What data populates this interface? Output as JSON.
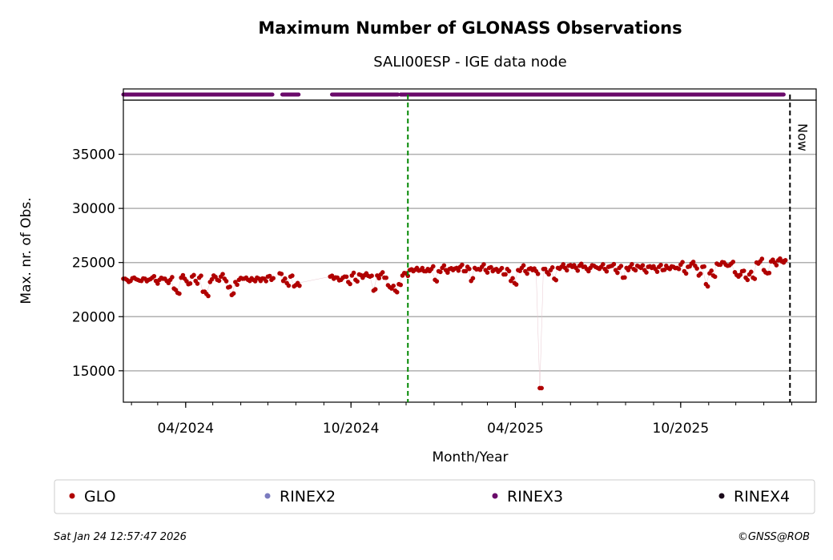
{
  "chart_data": {
    "type": "scatter",
    "title": "Maximum Number of GLONASS Observations",
    "subtitle": "SALI00ESP - IGE data node",
    "xlabel": "Month/Year",
    "ylabel": "Max. nr. of Obs.",
    "x_unit": "days since 2024-01-23",
    "start_date": "2024-01-23",
    "xlim": [
      0,
      767
    ],
    "ylim": [
      12100,
      40000
    ],
    "yticks": [
      15000,
      20000,
      25000,
      30000,
      35000
    ],
    "ytick_labels": [
      "15000",
      "20000",
      "25000",
      "30000",
      "35000"
    ],
    "xtick_labels": [
      {
        "label": "04/2024",
        "date": "2024-04-01"
      },
      {
        "label": "10/2024",
        "date": "2024-10-01"
      },
      {
        "label": "04/2025",
        "date": "2025-04-01"
      },
      {
        "label": "10/2025",
        "date": "2025-10-01"
      }
    ],
    "grid": "horizontal",
    "vline_green_day": 315,
    "now_day": 738,
    "now_label": "Now",
    "series": [
      {
        "name": "GLO",
        "color": "#b00000",
        "points": [
          [
            0,
            23500
          ],
          [
            4,
            23400
          ],
          [
            8,
            23300
          ],
          [
            12,
            23600
          ],
          [
            16,
            23400
          ],
          [
            20,
            23300
          ],
          [
            24,
            23500
          ],
          [
            28,
            23400
          ],
          [
            32,
            23600
          ],
          [
            36,
            23300
          ],
          [
            40,
            23400
          ],
          [
            44,
            23500
          ],
          [
            48,
            23300
          ],
          [
            52,
            23400
          ],
          [
            56,
            22600
          ],
          [
            60,
            22200
          ],
          [
            64,
            23600
          ],
          [
            68,
            23500
          ],
          [
            72,
            23000
          ],
          [
            76,
            23700
          ],
          [
            80,
            23300
          ],
          [
            84,
            23600
          ],
          [
            88,
            22300
          ],
          [
            92,
            22100
          ],
          [
            96,
            23200
          ],
          [
            100,
            23800
          ],
          [
            104,
            23400
          ],
          [
            108,
            23700
          ],
          [
            112,
            23500
          ],
          [
            116,
            22700
          ],
          [
            120,
            22000
          ],
          [
            124,
            23200
          ],
          [
            128,
            23400
          ],
          [
            132,
            23500
          ],
          [
            136,
            23600
          ],
          [
            140,
            23300
          ],
          [
            144,
            23400
          ],
          [
            148,
            23600
          ],
          [
            152,
            23300
          ],
          [
            156,
            23500
          ],
          [
            160,
            23700
          ],
          [
            164,
            23400
          ],
          [
            173,
            24000
          ],
          [
            177,
            23300
          ],
          [
            181,
            23100
          ],
          [
            185,
            23700
          ],
          [
            189,
            22800
          ],
          [
            193,
            23100
          ],
          [
            229,
            23700
          ],
          [
            233,
            23500
          ],
          [
            237,
            23600
          ],
          [
            241,
            23400
          ],
          [
            245,
            23700
          ],
          [
            249,
            23200
          ],
          [
            253,
            23800
          ],
          [
            257,
            23400
          ],
          [
            261,
            23900
          ],
          [
            265,
            23600
          ],
          [
            269,
            24000
          ],
          [
            273,
            23700
          ],
          [
            277,
            22400
          ],
          [
            281,
            23800
          ],
          [
            285,
            23900
          ],
          [
            289,
            23600
          ],
          [
            293,
            22900
          ],
          [
            297,
            22600
          ],
          [
            301,
            22400
          ],
          [
            305,
            23000
          ],
          [
            309,
            23800
          ],
          [
            313,
            24000
          ],
          [
            317,
            24300
          ],
          [
            321,
            24200
          ],
          [
            325,
            24500
          ],
          [
            329,
            24300
          ],
          [
            333,
            24200
          ],
          [
            337,
            24400
          ],
          [
            341,
            24400
          ],
          [
            345,
            23400
          ],
          [
            349,
            24200
          ],
          [
            353,
            24500
          ],
          [
            357,
            24300
          ],
          [
            361,
            24400
          ],
          [
            365,
            24300
          ],
          [
            369,
            24500
          ],
          [
            373,
            24600
          ],
          [
            377,
            24200
          ],
          [
            381,
            24600
          ],
          [
            385,
            23300
          ],
          [
            389,
            24500
          ],
          [
            393,
            24400
          ],
          [
            397,
            24600
          ],
          [
            401,
            24300
          ],
          [
            405,
            24500
          ],
          [
            409,
            24200
          ],
          [
            413,
            24400
          ],
          [
            417,
            24300
          ],
          [
            421,
            23900
          ],
          [
            425,
            24400
          ],
          [
            429,
            23300
          ],
          [
            433,
            23100
          ],
          [
            437,
            24300
          ],
          [
            441,
            24500
          ],
          [
            445,
            24200
          ],
          [
            449,
            24400
          ],
          [
            453,
            24300
          ],
          [
            457,
            24200
          ],
          [
            461,
            13400
          ],
          [
            465,
            24400
          ],
          [
            469,
            24100
          ],
          [
            473,
            24300
          ],
          [
            477,
            23500
          ],
          [
            481,
            24500
          ],
          [
            485,
            24600
          ],
          [
            489,
            24500
          ],
          [
            493,
            24700
          ],
          [
            497,
            24600
          ],
          [
            501,
            24500
          ],
          [
            505,
            24700
          ],
          [
            509,
            24600
          ],
          [
            513,
            24400
          ],
          [
            517,
            24500
          ],
          [
            521,
            24700
          ],
          [
            525,
            24500
          ],
          [
            529,
            24600
          ],
          [
            533,
            24400
          ],
          [
            537,
            24600
          ],
          [
            541,
            24700
          ],
          [
            545,
            24300
          ],
          [
            549,
            24500
          ],
          [
            553,
            23600
          ],
          [
            557,
            24500
          ],
          [
            561,
            24600
          ],
          [
            565,
            24400
          ],
          [
            569,
            24700
          ],
          [
            573,
            24500
          ],
          [
            577,
            24300
          ],
          [
            581,
            24600
          ],
          [
            585,
            24500
          ],
          [
            589,
            24400
          ],
          [
            593,
            24600
          ],
          [
            597,
            24300
          ],
          [
            601,
            24700
          ],
          [
            605,
            24400
          ],
          [
            609,
            24600
          ],
          [
            613,
            24500
          ],
          [
            617,
            24800
          ],
          [
            621,
            24200
          ],
          [
            625,
            24600
          ],
          [
            629,
            24900
          ],
          [
            633,
            24700
          ],
          [
            637,
            23800
          ],
          [
            641,
            24600
          ],
          [
            645,
            23000
          ],
          [
            649,
            24000
          ],
          [
            653,
            23800
          ],
          [
            657,
            24900
          ],
          [
            661,
            24800
          ],
          [
            665,
            25000
          ],
          [
            669,
            24700
          ],
          [
            673,
            24900
          ],
          [
            677,
            24100
          ],
          [
            681,
            23700
          ],
          [
            685,
            24200
          ],
          [
            689,
            23600
          ],
          [
            693,
            23900
          ],
          [
            697,
            23600
          ],
          [
            701,
            25000
          ],
          [
            705,
            25100
          ],
          [
            709,
            24300
          ],
          [
            713,
            24000
          ],
          [
            717,
            25100
          ],
          [
            721,
            25000
          ],
          [
            725,
            25200
          ],
          [
            729,
            25100
          ],
          [
            731,
            25000
          ]
        ]
      },
      {
        "name": "RINEX2",
        "color": "#7b7bbf",
        "segments": []
      },
      {
        "name": "RINEX3",
        "color": "#6a0a6a",
        "segments": [
          [
            0,
            165
          ],
          [
            176,
            194
          ],
          [
            231,
            304
          ],
          [
            307,
            731
          ]
        ]
      },
      {
        "name": "RINEX4",
        "color": "#1a0a1a",
        "segments": []
      }
    ]
  },
  "footer": {
    "timestamp": "Sat Jan 24 12:57:47 2026",
    "copyright": "©GNSS@ROB"
  }
}
